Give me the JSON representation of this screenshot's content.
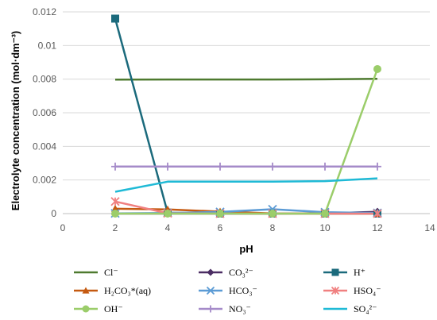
{
  "chart_data": {
    "type": "line",
    "xlabel": "pH",
    "ylabel": "Electrolyte concentration (mol·dm⁻³)",
    "xlim": [
      0,
      14
    ],
    "ylim": [
      0,
      0.012
    ],
    "x_ticks": [
      "0",
      "2",
      "4",
      "6",
      "8",
      "10",
      "12",
      "14"
    ],
    "y_ticks": [
      "0",
      "0.002",
      "0.004",
      "0.006",
      "0.008",
      "0.01",
      "0.012"
    ],
    "grid": "horizontal",
    "legend_position": "bottom",
    "x": [
      2,
      4,
      6,
      8,
      10,
      12
    ],
    "series": [
      {
        "name": "Cl⁻",
        "color": "#4e7a2f",
        "marker": "none",
        "values": [
          0.00797,
          0.00798,
          0.00798,
          0.00798,
          0.00799,
          0.00802
        ]
      },
      {
        "name": "CO₃²⁻",
        "color": "#4b2d63",
        "marker": "diamond",
        "values": [
          0.0,
          0.0,
          0.0,
          0.0,
          2e-05,
          0.00011
        ]
      },
      {
        "name": "H⁺",
        "color": "#1b6a7c",
        "marker": "square",
        "values": [
          0.0116,
          5e-05,
          0.0,
          0.0,
          0.0,
          0.0
        ]
      },
      {
        "name": "H₂CO₃*(aq)",
        "color": "#c55a11",
        "marker": "triangle",
        "values": [
          0.00029,
          0.00025,
          0.00012,
          1e-05,
          0.0,
          0.0
        ]
      },
      {
        "name": "HCO₃⁻",
        "color": "#5b9bd5",
        "marker": "x",
        "values": [
          1e-05,
          4e-05,
          0.0001,
          0.00026,
          8e-05,
          4e-05
        ]
      },
      {
        "name": "HSO₄⁻",
        "color": "#f08080",
        "marker": "star",
        "values": [
          0.00072,
          2e-05,
          0.0,
          0.0,
          0.0,
          0.0
        ]
      },
      {
        "name": "OH⁻",
        "color": "#9bcd6a",
        "marker": "circle",
        "values": [
          0.0,
          0.0,
          0.0,
          0.0,
          0.0,
          0.0086
        ]
      },
      {
        "name": "NO₃⁻",
        "color": "#a58bc9",
        "marker": "plus",
        "values": [
          0.0028,
          0.0028,
          0.0028,
          0.0028,
          0.0028,
          0.0028
        ]
      },
      {
        "name": "SO₄²⁻",
        "color": "#1fbad6",
        "marker": "none",
        "values": [
          0.0013,
          0.0019,
          0.0019,
          0.0019,
          0.00193,
          0.0021
        ]
      }
    ]
  }
}
